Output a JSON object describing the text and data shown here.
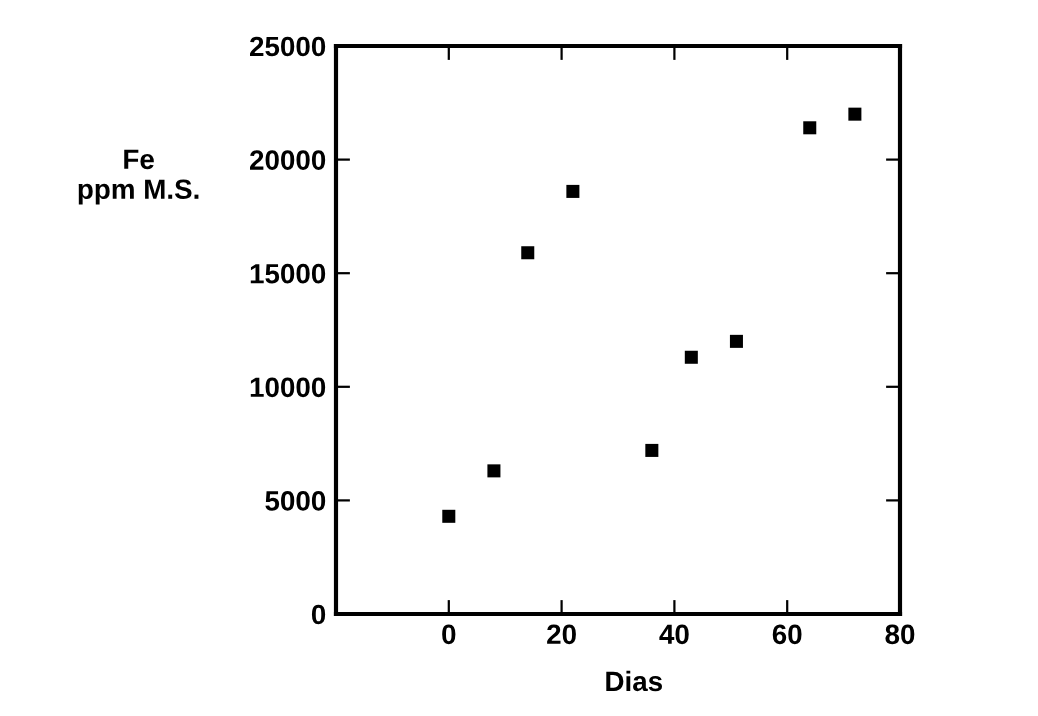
{
  "chart_data": {
    "type": "scatter",
    "xlabel": "Dias",
    "ylabel": "Fe\nppm M.S.",
    "x": [
      0,
      8,
      14,
      22,
      36,
      43,
      51,
      64,
      72
    ],
    "values": [
      4300,
      6300,
      15900,
      18600,
      7200,
      11300,
      12000,
      21400,
      22000
    ],
    "color": "#000000",
    "marker": "square",
    "xlim": [
      -20,
      80
    ],
    "xticks": [
      0,
      20,
      40,
      60,
      80
    ],
    "ylim": [
      0,
      25000
    ],
    "yticks": [
      0,
      5000,
      10000,
      15000,
      20000,
      25000
    ],
    "grid": false,
    "legend": false
  }
}
